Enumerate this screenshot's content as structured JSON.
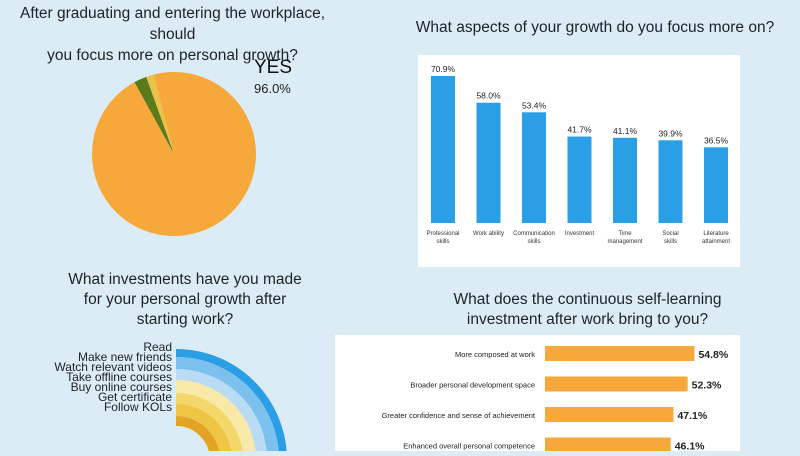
{
  "pie": {
    "title_line1": "After graduating and entering the workplace, should",
    "title_line2": "you focus more on personal growth?",
    "label": "YES",
    "pct_label": "96.0%"
  },
  "bars": {
    "title": "What aspects of your growth do you focus more on?"
  },
  "rings": {
    "title_line1": "What investments have you made",
    "title_line2": "for your personal growth after",
    "title_line3": "starting work?"
  },
  "hbars": {
    "title_line1": "What does the continuous self-learning",
    "title_line2": "investment after work bring to you?"
  },
  "chart_data": [
    {
      "type": "pie",
      "title": "After graduating and entering the workplace, should you focus more on personal growth?",
      "slices": [
        {
          "label": "YES",
          "value": 96.0,
          "color": "#f7a83a"
        },
        {
          "label": "",
          "value": 2.5,
          "color": "#5a7a1c"
        },
        {
          "label": "",
          "value": 1.5,
          "color": "#e8c24a"
        }
      ]
    },
    {
      "type": "bar",
      "title": "What aspects of your growth do you focus more on?",
      "categories": [
        [
          "Professional",
          "skills"
        ],
        [
          "Work ability"
        ],
        [
          "Communication",
          "skills"
        ],
        [
          "Investment"
        ],
        [
          "Time",
          "management"
        ],
        [
          "Social",
          "skills"
        ],
        [
          "Literature",
          "attainment"
        ]
      ],
      "values": [
        70.9,
        58.0,
        53.4,
        41.7,
        41.1,
        39.9,
        36.5
      ],
      "value_labels": [
        "70.9%",
        "58.0%",
        "53.4%",
        "41.7%",
        "41.1%",
        "39.9%",
        "36.5%"
      ],
      "color": "#2a9fe6",
      "ylim": [
        0,
        75
      ]
    },
    {
      "type": "radial",
      "title": "What investments have you made for your personal growth after starting work?",
      "categories": [
        "Read",
        "Make new friends",
        "Watch relevant videos",
        "Take offline courses",
        "Buy online courses",
        "Get certificate",
        "Follow KOLs"
      ],
      "colors": [
        "#2a9fe6",
        "#7cc0ee",
        "#b9dcf4",
        "#f8e9a8",
        "#f3d76a",
        "#efc544",
        "#e5a326"
      ]
    },
    {
      "type": "bar",
      "orientation": "horizontal",
      "title": "What does the continuous self-learning investment after work bring to you?",
      "categories": [
        "More composed at work",
        "Broader personal development space",
        "Greater confidence and sense of achievement",
        "Enhanced overall personal competence"
      ],
      "values": [
        54.8,
        52.3,
        47.1,
        46.1
      ],
      "value_labels": [
        "54.8%",
        "52.3%",
        "47.1%",
        "46.1%"
      ],
      "color": "#f7a83a",
      "xlim": [
        0,
        55
      ]
    }
  ]
}
